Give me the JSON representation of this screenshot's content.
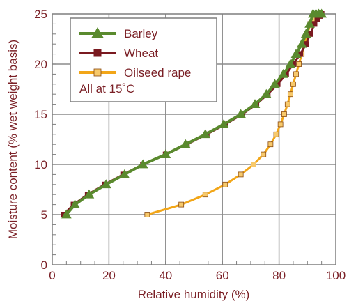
{
  "chart_data": {
    "type": "line",
    "xlabel": "Relative humidity (%)",
    "ylabel": "Moisture content (% wet weight basis)",
    "xlim": [
      0,
      100
    ],
    "ylim": [
      0,
      25
    ],
    "x_ticks": [
      "0",
      "20",
      "40",
      "60",
      "80",
      "100"
    ],
    "y_ticks": [
      "0",
      "5",
      "10",
      "15",
      "20",
      "25"
    ],
    "grid": true,
    "legend_placement": "top-left",
    "annotation": "All at 15˚C",
    "series": [
      {
        "name": "Barley",
        "color": "#5a8a2e",
        "marker": "triangle",
        "x": [
          5.0,
          8.0,
          13.0,
          19.0,
          25.5,
          32.0,
          40.0,
          47.0,
          54.0,
          60.5,
          66.5,
          71.5,
          75.5,
          78.5,
          81.5,
          84.0,
          86.0,
          88.0,
          89.5,
          90.8,
          92.0,
          93.0,
          94.0,
          95.0
        ],
        "y": [
          5,
          6,
          7,
          8,
          9,
          10,
          11,
          12,
          13,
          14,
          15,
          16,
          17,
          18,
          19,
          20,
          21,
          22,
          23,
          24,
          25,
          25,
          25,
          25
        ]
      },
      {
        "name": "Wheat",
        "color": "#7a1a20",
        "marker": "square",
        "x": [
          4.0,
          7.5,
          12.5,
          18.5,
          25.0,
          32.0,
          40.0,
          47.5,
          54.5,
          61.0,
          67.0,
          72.0,
          76.0,
          79.5,
          82.5,
          85.0,
          87.5,
          89.5,
          91.0,
          92.5,
          93.5,
          94.5,
          95.0
        ],
        "y": [
          5,
          6,
          7,
          8,
          9,
          10,
          11,
          12,
          13,
          14,
          15,
          16,
          17,
          18,
          19,
          20,
          21,
          22,
          23,
          24,
          24.5,
          24.8,
          25
        ]
      },
      {
        "name": "Oilseed rape",
        "color": "#f2a618",
        "marker": "square",
        "x": [
          33.5,
          45.5,
          54.0,
          61.0,
          66.5,
          71.0,
          74.5,
          77.0,
          79.0,
          80.5,
          81.8,
          83.0,
          84.0,
          85.0,
          86.0,
          87.0,
          88.0,
          89.0,
          90.0,
          91.0,
          92.0,
          93.0,
          93.5
        ],
        "y": [
          5,
          6,
          7,
          8,
          9,
          10,
          11,
          12,
          13,
          14,
          15,
          16,
          17,
          18,
          19,
          20,
          21,
          22,
          23,
          24,
          24.5,
          25,
          25
        ]
      }
    ]
  }
}
